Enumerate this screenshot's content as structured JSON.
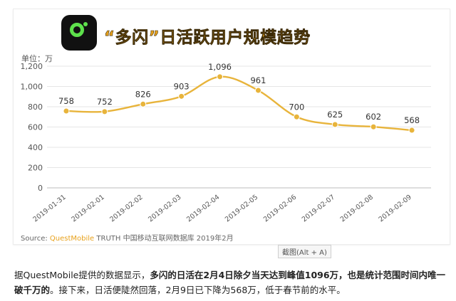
{
  "chart_data": {
    "type": "line",
    "title": "“多闪”日活跃用户规模趋势",
    "ylabel": "单位：万",
    "x": [
      "2019-01-31",
      "2019-02-01",
      "2019-02-02",
      "2019-02-03",
      "2019-02-04",
      "2019-02-05",
      "2019-02-06",
      "2019-02-07",
      "2019-02-08",
      "2019-02-09"
    ],
    "series": [
      {
        "values": [
          758,
          752,
          826,
          903,
          1096,
          961,
          700,
          625,
          602,
          568
        ],
        "labels": [
          "758",
          "752",
          "826",
          "903",
          "1,096",
          "961",
          "700",
          "625",
          "602",
          "568"
        ]
      }
    ],
    "ylim": [
      0,
      1200
    ],
    "yticks": [
      0,
      200,
      400,
      600,
      800,
      1000,
      1200
    ],
    "yticklabels": [
      "0",
      "200",
      "400",
      "600",
      "800",
      "1,000",
      "1,200"
    ],
    "grid": true,
    "line_color": "#e8b43b"
  },
  "source": {
    "prefix": "Source:",
    "brand": "QuestMobile",
    "rest": "TRUTH 中国移动互联网数据库 2019年2月"
  },
  "tooltip": "截图(Alt + A)",
  "caption": {
    "part1": "据QuestMobile提供的数据显示，",
    "bold1": "多闪的日活在2月4日除夕当天达到峰值1096万，也是统计范围时间内唯一破千万的",
    "part2": "。接下来，日活便陡然回落，2月9日已下降为568万，低于春节前的水平。"
  }
}
